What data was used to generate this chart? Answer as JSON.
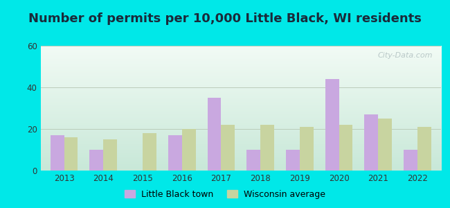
{
  "title": "Number of permits per 10,000 Little Black, WI residents",
  "years": [
    2013,
    2014,
    2015,
    2016,
    2017,
    2018,
    2019,
    2020,
    2021,
    2022
  ],
  "little_black": [
    17,
    10,
    0,
    17,
    35,
    10,
    10,
    44,
    27,
    10
  ],
  "wisconsin_avg": [
    16,
    15,
    18,
    20,
    22,
    22,
    21,
    22,
    25,
    21
  ],
  "bar_color_lb": "#c9a8e0",
  "bar_color_wi": "#c8d4a0",
  "ylim": [
    0,
    60
  ],
  "yticks": [
    0,
    20,
    40,
    60
  ],
  "background_outer": "#00e8e8",
  "background_inner_top": "#f2fbf5",
  "background_inner_bottom": "#c8e8d8",
  "grid_color": "#bbccbb",
  "title_fontsize": 13,
  "legend_lb": "Little Black town",
  "legend_wi": "Wisconsin average",
  "watermark": "City-Data.com",
  "title_color": "#1a2a3a"
}
